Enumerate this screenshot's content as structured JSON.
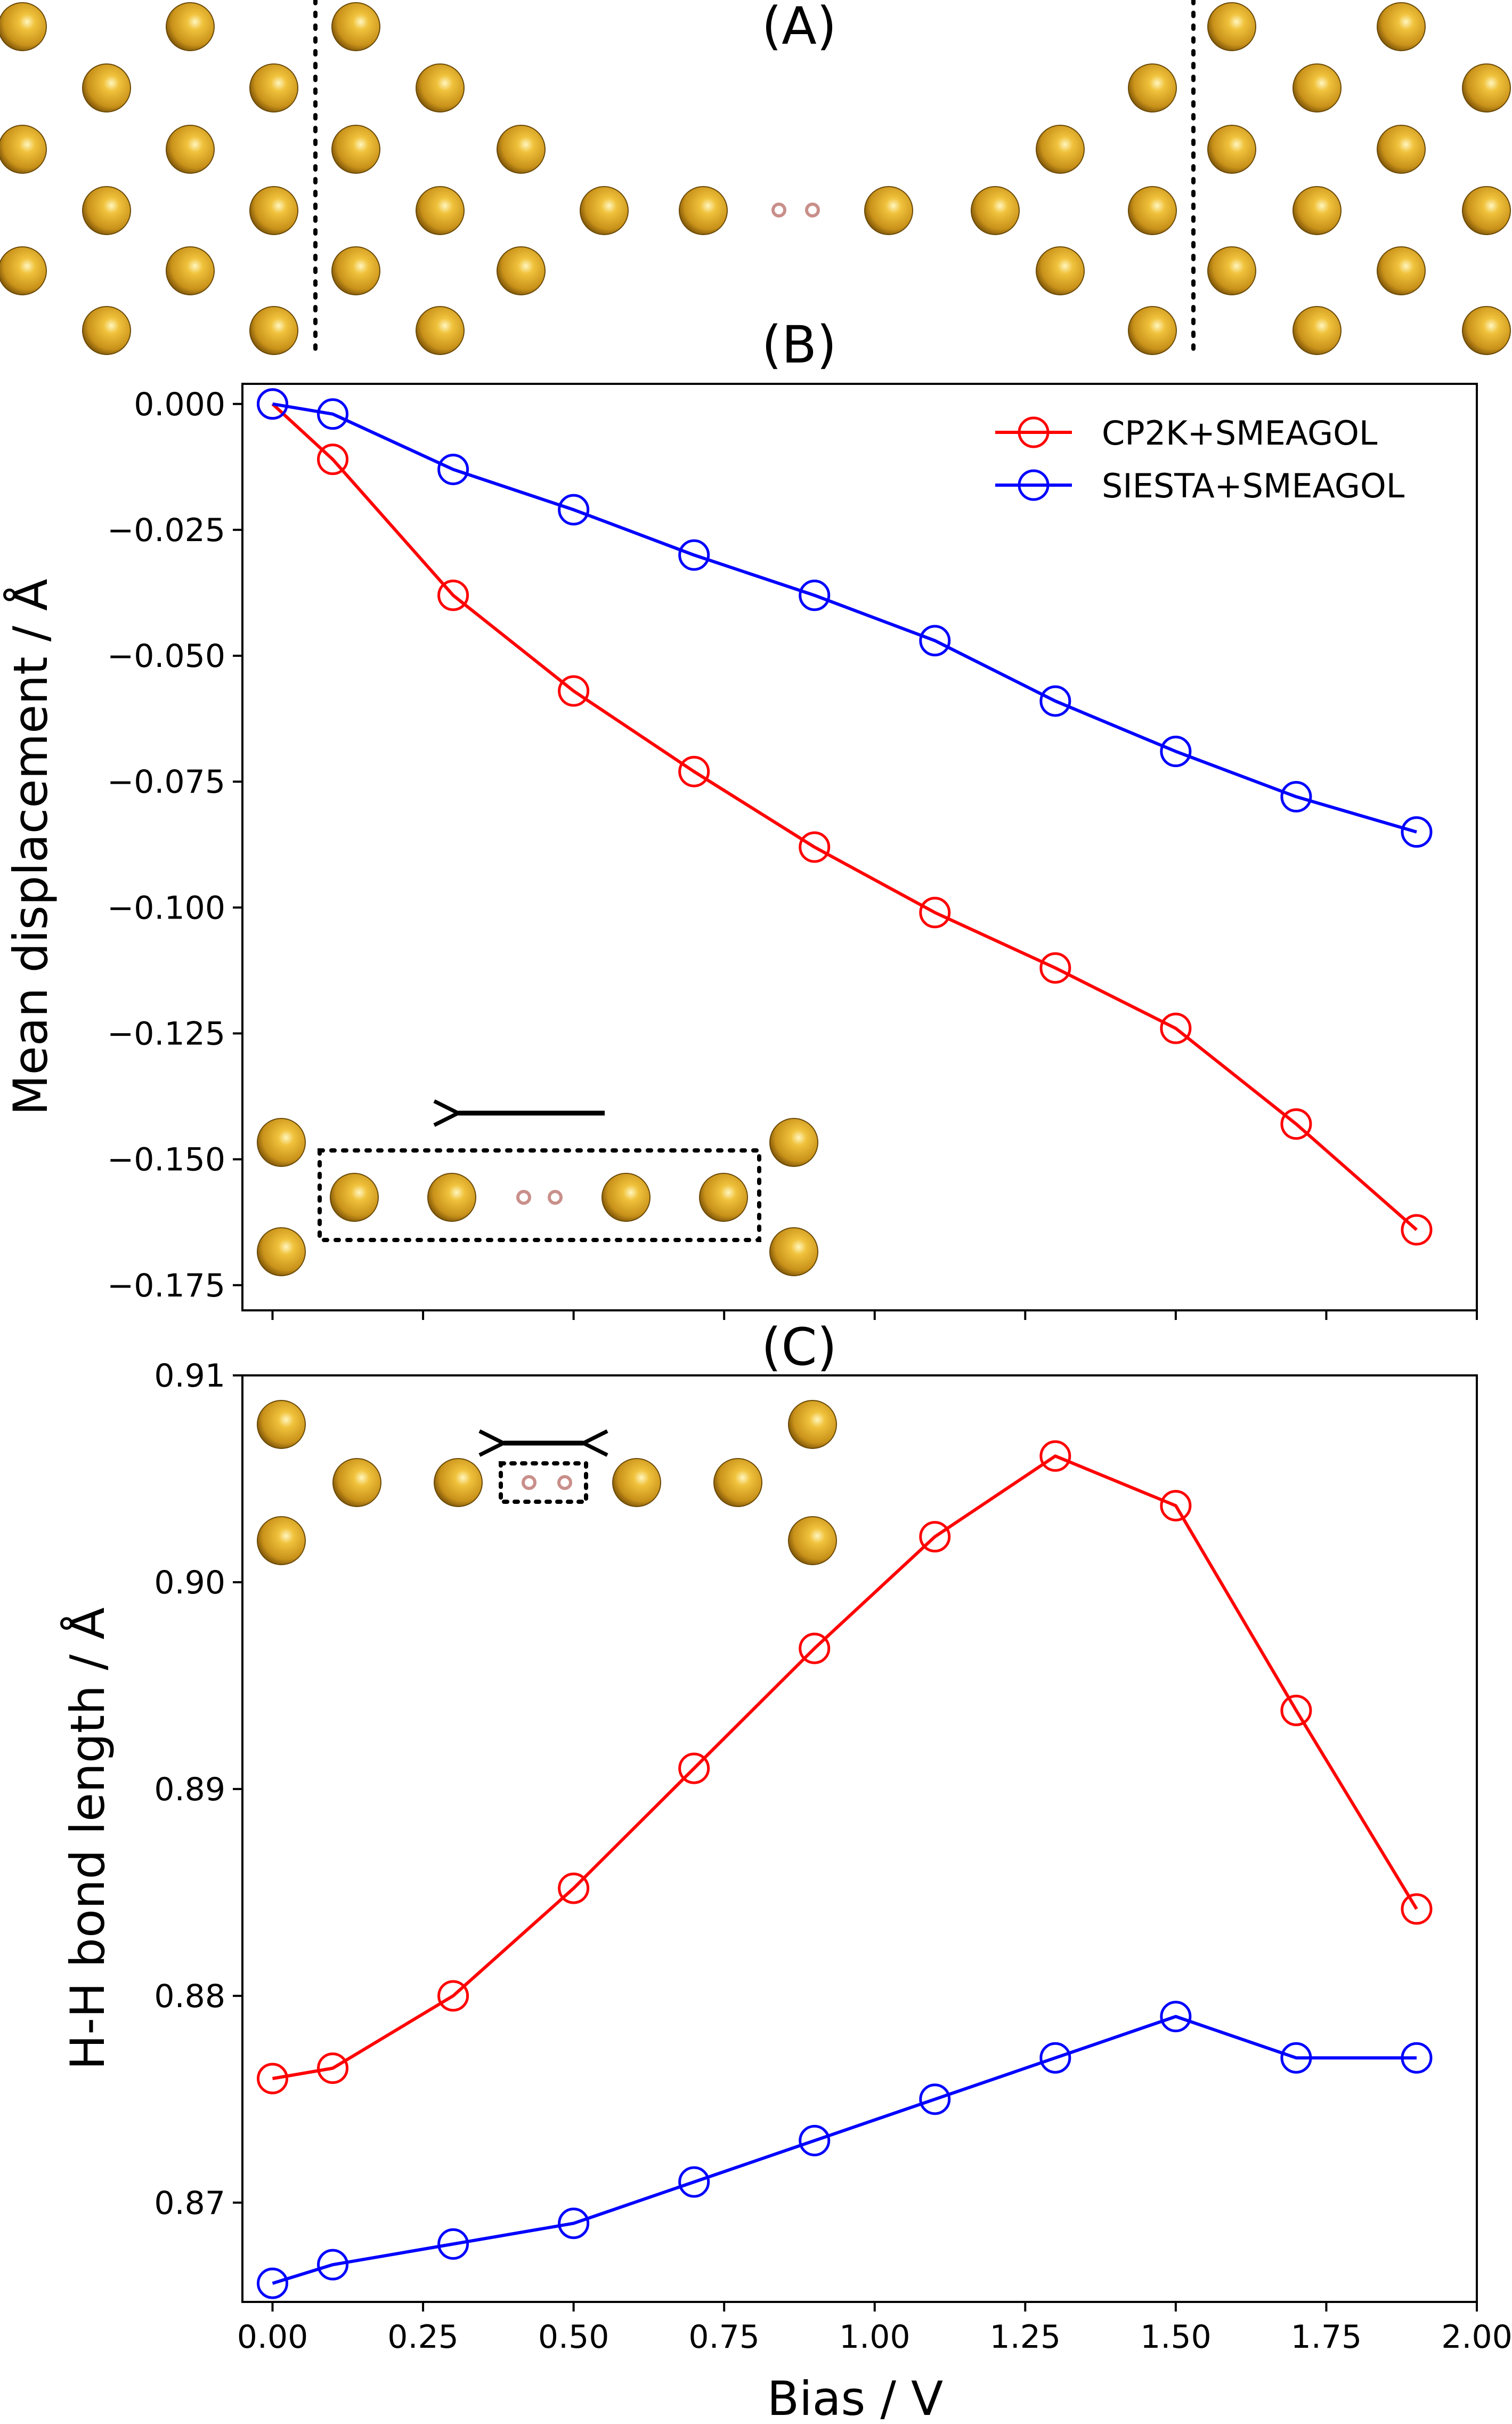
{
  "figure": {
    "panel_labels": [
      "(A)",
      "(B)",
      "(C)"
    ]
  },
  "chart_data": [
    {
      "panel": "(B)",
      "type": "line",
      "xlabel": "",
      "ylabel": "Mean displacement / Å",
      "xlim": [
        -0.05,
        2.0
      ],
      "ylim": [
        -0.18,
        0.004
      ],
      "yticks": [
        0.0,
        -0.025,
        -0.05,
        -0.075,
        -0.1,
        -0.125,
        -0.15,
        -0.175
      ],
      "ytick_labels": [
        "0.000",
        "−0.025",
        "−0.050",
        "−0.075",
        "−0.100",
        "−0.125",
        "−0.150",
        "−0.175"
      ],
      "x": [
        0.0,
        0.1,
        0.3,
        0.5,
        0.7,
        0.9,
        1.1,
        1.3,
        1.5,
        1.7,
        1.9
      ],
      "series": [
        {
          "name": "CP2K+SMEAGOL",
          "color": "#ff0000",
          "values": [
            0.0,
            -0.011,
            -0.038,
            -0.057,
            -0.073,
            -0.088,
            -0.101,
            -0.112,
            -0.124,
            -0.143,
            -0.164
          ]
        },
        {
          "name": "SIESTA+SMEAGOL",
          "color": "#0000ff",
          "values": [
            0.0,
            -0.002,
            -0.013,
            -0.021,
            -0.03,
            -0.038,
            -0.047,
            -0.059,
            -0.069,
            -0.078,
            -0.085
          ]
        }
      ],
      "legend_position": "top-right",
      "grid": false
    },
    {
      "panel": "(C)",
      "type": "line",
      "xlabel": "Bias / V",
      "ylabel": "H-H bond length / Å",
      "xlim": [
        -0.05,
        2.0
      ],
      "ylim": [
        0.8652,
        0.91
      ],
      "xticks": [
        0.0,
        0.25,
        0.5,
        0.75,
        1.0,
        1.25,
        1.5,
        1.75,
        2.0
      ],
      "xtick_labels": [
        "0.00",
        "0.25",
        "0.50",
        "0.75",
        "1.00",
        "1.25",
        "1.50",
        "1.75",
        "2.00"
      ],
      "yticks": [
        0.87,
        0.88,
        0.89,
        0.9,
        0.91
      ],
      "ytick_labels": [
        "0.87",
        "0.88",
        "0.89",
        "0.90",
        "0.91"
      ],
      "x": [
        0.0,
        0.1,
        0.3,
        0.5,
        0.7,
        0.9,
        1.1,
        1.3,
        1.5,
        1.7,
        1.9
      ],
      "series": [
        {
          "name": "CP2K+SMEAGOL",
          "color": "#ff0000",
          "values": [
            0.876,
            0.8765,
            0.88,
            0.8852,
            0.891,
            0.8968,
            0.9022,
            0.9061,
            0.9037,
            0.8938,
            0.8842
          ]
        },
        {
          "name": "SIESTA+SMEAGOL",
          "color": "#0000ff",
          "values": [
            0.8661,
            0.867,
            0.868,
            0.869,
            0.871,
            0.873,
            0.875,
            0.877,
            0.879,
            0.877,
            0.877
          ]
        }
      ],
      "grid": false
    }
  ],
  "colors": {
    "gold": "#d6a020",
    "hydrogen": "#c98f8a"
  }
}
